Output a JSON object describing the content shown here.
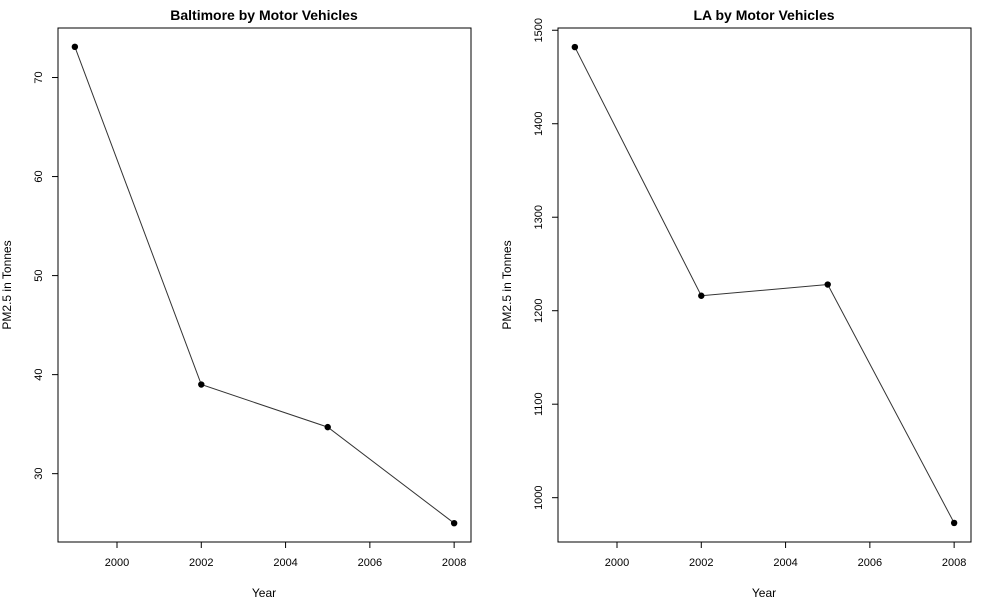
{
  "chart_data": [
    {
      "type": "line",
      "title": "Baltimore by Motor Vehicles",
      "xlabel": "Year",
      "ylabel": "PM2.5 in Tonnes",
      "x": [
        1999,
        2002,
        2005,
        2008
      ],
      "values": [
        73.1,
        39.0,
        34.7,
        25.0
      ],
      "xlim": [
        1998.6,
        2008.4
      ],
      "ylim": [
        23.1,
        75.0
      ],
      "xticks": [
        2000,
        2002,
        2004,
        2006,
        2008
      ],
      "yticks": [
        30,
        40,
        50,
        60,
        70
      ],
      "grid": false,
      "point_color": "#000000",
      "line_color": "#333333"
    },
    {
      "type": "line",
      "title": "LA by Motor Vehicles",
      "xlabel": "Year",
      "ylabel": "PM2.5 in Tonnes",
      "x": [
        1999,
        2002,
        2005,
        2008
      ],
      "values": [
        1482,
        1216,
        1228,
        973
      ],
      "xlim": [
        1998.6,
        2008.4
      ],
      "ylim": [
        952.6,
        1502.4
      ],
      "xticks": [
        2000,
        2002,
        2004,
        2006,
        2008
      ],
      "yticks": [
        1000,
        1100,
        1200,
        1300,
        1400,
        1500
      ],
      "grid": false,
      "point_color": "#000000",
      "line_color": "#333333"
    }
  ]
}
